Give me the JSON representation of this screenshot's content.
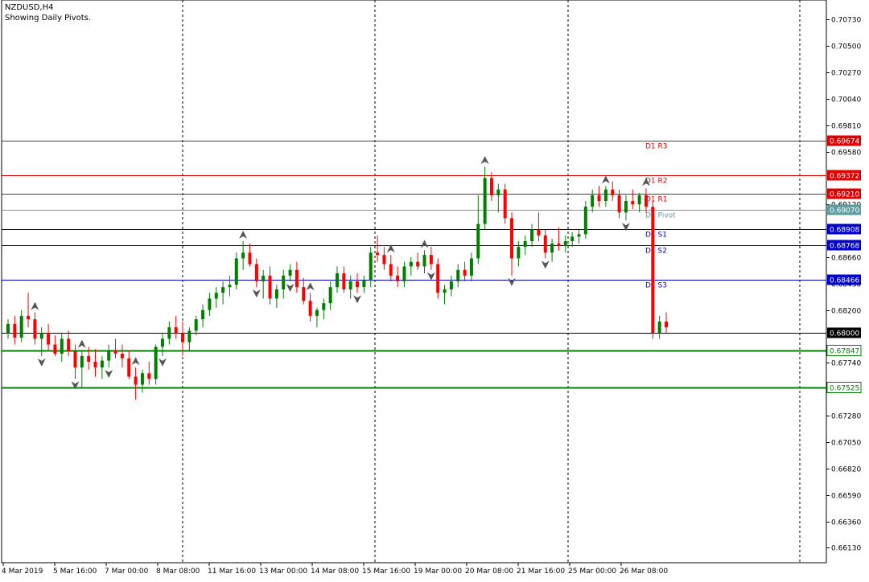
{
  "header": {
    "symbol": "NZDUSD,H4",
    "subtitle": "Showing Daily Pivots."
  },
  "colors": {
    "bull": "#008000",
    "bear": "#ff0000",
    "resistance": "#e00000",
    "support": "#0000cc",
    "pivot": "#5f9ea0",
    "level": "#008000",
    "grid": "#000000",
    "current": "#000000"
  },
  "chart_data": {
    "type": "candlestick",
    "y_axis_ticks": [
      "0.70730",
      "0.70500",
      "0.70270",
      "0.70040",
      "0.69810",
      "0.69580",
      "0.69120",
      "0.68660",
      "0.68430",
      "0.68200",
      "0.67740",
      "0.67280",
      "0.67050",
      "0.66820",
      "0.66590",
      "0.66360",
      "0.66130"
    ],
    "x_axis_labels": [
      "4 Mar 2019",
      "5 Mar 16:00",
      "7 Mar 00:00",
      "8 Mar 08:00",
      "11 Mar 16:00",
      "13 Mar 00:00",
      "14 Mar 08:00",
      "15 Mar 16:00",
      "19 Mar 00:00",
      "20 Mar 08:00",
      "21 Mar 16:00",
      "25 Mar 00:00",
      "26 Mar 08:00"
    ],
    "day_separators": [
      "8 Mar 2019",
      "15 Mar 2019",
      "25 Mar 2019",
      "27 Mar 2019"
    ],
    "ylim": [
      0.66,
      0.709
    ],
    "pivot_levels": [
      {
        "label": "D1  R3",
        "value": 0.69674,
        "price": "0.69674",
        "kind": "resistance"
      },
      {
        "label": "D1  R2",
        "value": 0.69372,
        "price": "0.69372",
        "kind": "resistance"
      },
      {
        "label": "D1  R1",
        "value": 0.6921,
        "price": "0.69210",
        "kind": "resistance"
      },
      {
        "label": "D1  Pivot",
        "value": 0.6907,
        "price": "0.69070",
        "kind": "pivot"
      },
      {
        "label": "D1  S1",
        "value": 0.68908,
        "price": "0.68908",
        "kind": "support"
      },
      {
        "label": "D1  S2",
        "value": 0.68768,
        "price": "0.68768",
        "kind": "support"
      },
      {
        "label": "D1  S3",
        "value": 0.68466,
        "price": "0.68466",
        "kind": "support"
      }
    ],
    "horizontal_levels": [
      {
        "value": 0.67847,
        "price": "0.67847"
      },
      {
        "value": 0.67525,
        "price": "0.67525"
      }
    ],
    "current_price": {
      "value": 0.68,
      "price": "0.68000"
    },
    "candles": [
      [
        0.68,
        0.6812,
        0.6795,
        0.6808
      ],
      [
        0.6808,
        0.6815,
        0.679,
        0.6796
      ],
      [
        0.6796,
        0.682,
        0.6792,
        0.6815
      ],
      [
        0.6815,
        0.6835,
        0.6805,
        0.6812
      ],
      [
        0.6812,
        0.6818,
        0.679,
        0.6795
      ],
      [
        0.6795,
        0.6805,
        0.678,
        0.68
      ],
      [
        0.68,
        0.6808,
        0.6785,
        0.679
      ],
      [
        0.679,
        0.6798,
        0.678,
        0.6782
      ],
      [
        0.6782,
        0.68,
        0.6775,
        0.6795
      ],
      [
        0.6795,
        0.6802,
        0.678,
        0.6784
      ],
      [
        0.6784,
        0.679,
        0.676,
        0.677
      ],
      [
        0.677,
        0.6785,
        0.6752,
        0.678
      ],
      [
        0.678,
        0.6788,
        0.6768,
        0.6775
      ],
      [
        0.6775,
        0.6786,
        0.6762,
        0.677
      ],
      [
        0.677,
        0.678,
        0.676,
        0.6776
      ],
      [
        0.6776,
        0.679,
        0.677,
        0.6785
      ],
      [
        0.6785,
        0.6795,
        0.6778,
        0.6782
      ],
      [
        0.6782,
        0.679,
        0.677,
        0.6778
      ],
      [
        0.6778,
        0.6785,
        0.676,
        0.6762
      ],
      [
        0.6762,
        0.677,
        0.6742,
        0.6755
      ],
      [
        0.6755,
        0.6768,
        0.6748,
        0.6765
      ],
      [
        0.6765,
        0.6775,
        0.6755,
        0.676
      ],
      [
        0.676,
        0.679,
        0.6755,
        0.6788
      ],
      [
        0.6788,
        0.68,
        0.678,
        0.6795
      ],
      [
        0.6795,
        0.681,
        0.679,
        0.6805
      ],
      [
        0.6805,
        0.6815,
        0.6795,
        0.68
      ],
      [
        0.68,
        0.681,
        0.678,
        0.6792
      ],
      [
        0.6792,
        0.6805,
        0.6785,
        0.6802
      ],
      [
        0.6802,
        0.6815,
        0.6798,
        0.6812
      ],
      [
        0.6812,
        0.6825,
        0.6805,
        0.682
      ],
      [
        0.682,
        0.6835,
        0.6815,
        0.683
      ],
      [
        0.683,
        0.684,
        0.6822,
        0.6835
      ],
      [
        0.6835,
        0.6845,
        0.6825,
        0.684
      ],
      [
        0.684,
        0.685,
        0.6832,
        0.6842
      ],
      [
        0.6842,
        0.687,
        0.6838,
        0.6865
      ],
      [
        0.6865,
        0.688,
        0.6855,
        0.687
      ],
      [
        0.687,
        0.6878,
        0.6858,
        0.686
      ],
      [
        0.686,
        0.6865,
        0.684,
        0.6845
      ],
      [
        0.6845,
        0.6855,
        0.683,
        0.685
      ],
      [
        0.685,
        0.6858,
        0.6825,
        0.683
      ],
      [
        0.683,
        0.6842,
        0.6822,
        0.6838
      ],
      [
        0.6838,
        0.6855,
        0.683,
        0.685
      ],
      [
        0.685,
        0.686,
        0.6845,
        0.6855
      ],
      [
        0.6855,
        0.6862,
        0.6835,
        0.684
      ],
      [
        0.684,
        0.6848,
        0.6825,
        0.6828
      ],
      [
        0.6828,
        0.6835,
        0.681,
        0.6815
      ],
      [
        0.6815,
        0.6822,
        0.6805,
        0.682
      ],
      [
        0.682,
        0.683,
        0.6812,
        0.6826
      ],
      [
        0.6826,
        0.6845,
        0.682,
        0.684
      ],
      [
        0.684,
        0.6858,
        0.6835,
        0.6852
      ],
      [
        0.6852,
        0.6858,
        0.6835,
        0.6838
      ],
      [
        0.6838,
        0.685,
        0.683,
        0.6845
      ],
      [
        0.6845,
        0.6852,
        0.6835,
        0.684
      ],
      [
        0.684,
        0.685,
        0.6835,
        0.6846
      ],
      [
        0.6846,
        0.6875,
        0.684,
        0.687
      ],
      [
        0.687,
        0.6885,
        0.6862,
        0.6868
      ],
      [
        0.6868,
        0.6875,
        0.6855,
        0.686
      ],
      [
        0.686,
        0.6868,
        0.6845,
        0.685
      ],
      [
        0.685,
        0.6858,
        0.684,
        0.6845
      ],
      [
        0.6845,
        0.6862,
        0.684,
        0.6858
      ],
      [
        0.6858,
        0.6866,
        0.685,
        0.6862
      ],
      [
        0.6862,
        0.687,
        0.6855,
        0.6858
      ],
      [
        0.6858,
        0.6872,
        0.6852,
        0.6868
      ],
      [
        0.6868,
        0.6875,
        0.6855,
        0.686
      ],
      [
        0.686,
        0.6865,
        0.683,
        0.6835
      ],
      [
        0.6835,
        0.6842,
        0.6825,
        0.6838
      ],
      [
        0.6838,
        0.685,
        0.6832,
        0.6845
      ],
      [
        0.6845,
        0.686,
        0.684,
        0.6855
      ],
      [
        0.6855,
        0.6862,
        0.6845,
        0.685
      ],
      [
        0.685,
        0.687,
        0.6845,
        0.6865
      ],
      [
        0.6865,
        0.692,
        0.686,
        0.6895
      ],
      [
        0.6895,
        0.6945,
        0.689,
        0.6935
      ],
      [
        0.6935,
        0.694,
        0.6915,
        0.692
      ],
      [
        0.692,
        0.693,
        0.6905,
        0.6925
      ],
      [
        0.6925,
        0.693,
        0.6895,
        0.69
      ],
      [
        0.69,
        0.6905,
        0.685,
        0.6865
      ],
      [
        0.6865,
        0.688,
        0.6858,
        0.6875
      ],
      [
        0.6875,
        0.6885,
        0.6868,
        0.688
      ],
      [
        0.688,
        0.6895,
        0.6875,
        0.689
      ],
      [
        0.689,
        0.6905,
        0.688,
        0.6885
      ],
      [
        0.6885,
        0.689,
        0.6865,
        0.687
      ],
      [
        0.687,
        0.6882,
        0.6862,
        0.6878
      ],
      [
        0.6878,
        0.6892,
        0.6872,
        0.6876
      ],
      [
        0.6876,
        0.6885,
        0.687,
        0.688
      ],
      [
        0.688,
        0.6888,
        0.6875,
        0.6884
      ],
      [
        0.6884,
        0.689,
        0.6878,
        0.6886
      ],
      [
        0.6886,
        0.6915,
        0.6882,
        0.691
      ],
      [
        0.691,
        0.6925,
        0.6905,
        0.692
      ],
      [
        0.692,
        0.6928,
        0.691,
        0.6915
      ],
      [
        0.6915,
        0.6928,
        0.691,
        0.6925
      ],
      [
        0.6925,
        0.6932,
        0.6915,
        0.692
      ],
      [
        0.692,
        0.6925,
        0.69,
        0.6905
      ],
      [
        0.6905,
        0.692,
        0.6898,
        0.6915
      ],
      [
        0.6915,
        0.6925,
        0.6908,
        0.6912
      ],
      [
        0.6912,
        0.6922,
        0.6905,
        0.692
      ],
      [
        0.692,
        0.6926,
        0.6905,
        0.691
      ],
      [
        0.691,
        0.6915,
        0.6795,
        0.68
      ],
      [
        0.68,
        0.6815,
        0.6795,
        0.681
      ],
      [
        0.681,
        0.6818,
        0.68,
        0.6805
      ]
    ],
    "fractal_up_candles": [
      4,
      11,
      19,
      35,
      45,
      57,
      62,
      71,
      89,
      95
    ],
    "fractal_down_candles": [
      5,
      10,
      15,
      23,
      37,
      42,
      52,
      63,
      75,
      80,
      92
    ]
  }
}
